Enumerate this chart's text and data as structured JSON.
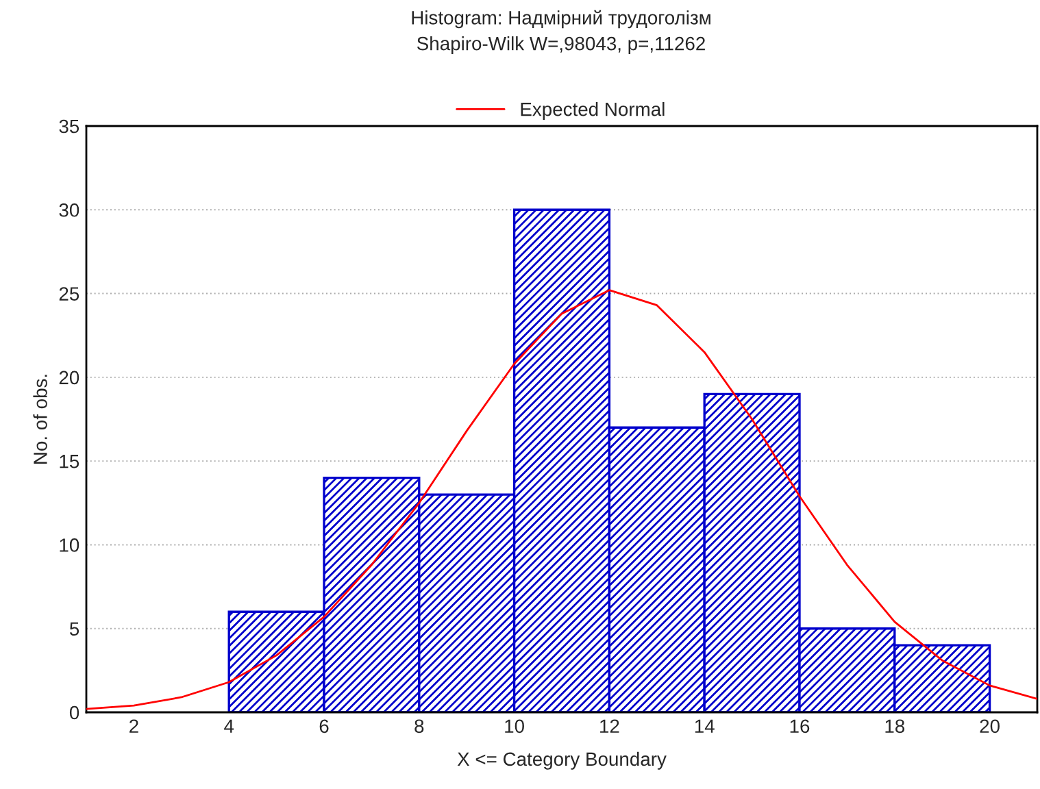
{
  "chart_data": {
    "type": "histogram",
    "title": "Histogram: Надмірний трудоголізм",
    "subtitle": "Shapiro-Wilk W=,98043, p=,11262",
    "xlabel": "X <= Category Boundary",
    "ylabel": "No. of obs.",
    "bins": [
      4,
      6,
      8,
      10,
      12,
      14,
      16,
      18,
      20
    ],
    "values": [
      6,
      14,
      13,
      30,
      17,
      19,
      5,
      4
    ],
    "color": "#0000cc",
    "series": [
      {
        "type": "line",
        "name": "Expected Normal",
        "color": "#ff0000",
        "x": [
          1,
          2,
          3,
          4,
          5,
          6,
          7,
          8,
          9,
          10,
          11,
          12,
          13,
          14,
          15,
          16,
          17,
          18,
          19,
          20,
          21
        ],
        "values": [
          0.2,
          0.4,
          0.9,
          1.8,
          3.4,
          5.7,
          8.8,
          12.5,
          16.8,
          20.8,
          23.8,
          25.2,
          24.3,
          21.5,
          17.5,
          12.9,
          8.8,
          5.4,
          3.1,
          1.6,
          0.8
        ]
      }
    ],
    "xlim": [
      1,
      21
    ],
    "xticks": [
      2,
      4,
      6,
      8,
      10,
      12,
      14,
      16,
      18,
      20
    ],
    "ylim": [
      0,
      35
    ],
    "yticks": [
      0,
      5,
      10,
      15,
      20,
      25,
      30,
      35
    ],
    "grid": "y",
    "legend": "top"
  }
}
